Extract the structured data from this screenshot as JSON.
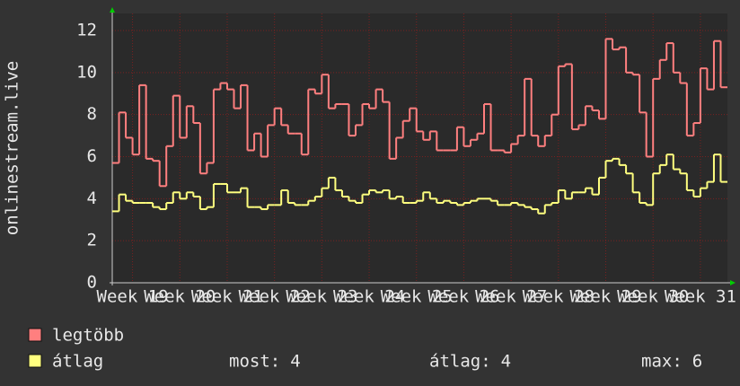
{
  "chart_data": {
    "type": "step-line",
    "y_label": "onlinestream.live",
    "x": [
      -3,
      -2,
      -1,
      0,
      1,
      2,
      3,
      4,
      5,
      6,
      7,
      8,
      9,
      10,
      11,
      12,
      13,
      14,
      15,
      16,
      17,
      18,
      19,
      20,
      21,
      22,
      23,
      24,
      25,
      26,
      27,
      28,
      29,
      30,
      31,
      32,
      33,
      34,
      35,
      36,
      37,
      38,
      39,
      40,
      41,
      42,
      43,
      44,
      45,
      46,
      47,
      48,
      49,
      50,
      51,
      52,
      53,
      54,
      55,
      56,
      57,
      58,
      59,
      60,
      61,
      62,
      63,
      64,
      65,
      66,
      67,
      68,
      69,
      70,
      71,
      72,
      73,
      74,
      75,
      76,
      77,
      78,
      79,
      80,
      81,
      82,
      83,
      84,
      85,
      86,
      87
    ],
    "series": [
      {
        "name": "legtöbb",
        "color": "#ff7f7f",
        "values": [
          5.7,
          8.1,
          6.9,
          6.1,
          9.4,
          5.9,
          5.8,
          4.6,
          6.5,
          8.9,
          6.9,
          8.4,
          7.6,
          5.2,
          5.7,
          9.2,
          9.5,
          9.2,
          8.3,
          9.4,
          6.3,
          7.1,
          6.0,
          7.5,
          8.3,
          7.5,
          7.1,
          7.1,
          6.1,
          9.2,
          9.0,
          9.9,
          8.3,
          8.5,
          8.5,
          7.0,
          7.5,
          8.5,
          8.3,
          9.2,
          8.6,
          5.9,
          6.9,
          7.7,
          8.3,
          7.2,
          6.8,
          7.2,
          6.3,
          6.3,
          6.3,
          7.4,
          6.5,
          6.8,
          7.1,
          8.5,
          6.3,
          6.3,
          6.2,
          6.6,
          7.0,
          9.7,
          7.0,
          6.5,
          7.0,
          8.0,
          10.3,
          10.4,
          7.3,
          7.5,
          8.4,
          8.2,
          7.8,
          11.6,
          11.1,
          11.2,
          10.0,
          9.9,
          8.1,
          6.0,
          9.7,
          10.6,
          11.4,
          10.0,
          9.5,
          7.0,
          7.6,
          10.2,
          9.2,
          11.5,
          9.3
        ]
      },
      {
        "name": "átlag",
        "color": "#ffff7f",
        "values": [
          3.4,
          4.2,
          3.9,
          3.8,
          3.8,
          3.8,
          3.6,
          3.5,
          3.8,
          4.3,
          4.0,
          4.3,
          4.1,
          3.5,
          3.6,
          4.7,
          4.7,
          4.3,
          4.3,
          4.5,
          3.6,
          3.6,
          3.5,
          3.7,
          3.7,
          4.4,
          3.8,
          3.7,
          3.7,
          3.9,
          4.1,
          4.5,
          5.0,
          4.4,
          4.1,
          3.9,
          3.8,
          4.2,
          4.4,
          4.3,
          4.4,
          4.0,
          4.1,
          3.8,
          3.8,
          3.9,
          4.3,
          4.0,
          3.8,
          3.9,
          3.8,
          3.7,
          3.8,
          3.9,
          4.0,
          4.0,
          3.9,
          3.7,
          3.7,
          3.8,
          3.7,
          3.6,
          3.5,
          3.3,
          3.7,
          3.8,
          4.4,
          4.0,
          4.3,
          4.3,
          4.5,
          4.2,
          5.0,
          5.8,
          5.9,
          5.6,
          5.2,
          4.3,
          3.8,
          3.7,
          5.2,
          5.6,
          6.1,
          5.4,
          5.2,
          4.4,
          4.1,
          4.5,
          4.8,
          6.1,
          4.8
        ]
      }
    ],
    "xlim": [
      -3,
      88
    ],
    "xticks": [
      {
        "value": 0,
        "label": "Week 19"
      },
      {
        "value": 7,
        "label": "Week 20"
      },
      {
        "value": 14,
        "label": "Week 21"
      },
      {
        "value": 21,
        "label": "Week 22"
      },
      {
        "value": 28,
        "label": "Week 23"
      },
      {
        "value": 35,
        "label": "Week 24"
      },
      {
        "value": 42,
        "label": "Week 25"
      },
      {
        "value": 49,
        "label": "Week 26"
      },
      {
        "value": 56,
        "label": "Week 27"
      },
      {
        "value": 63,
        "label": "Week 28"
      },
      {
        "value": 70,
        "label": "Week 29"
      },
      {
        "value": 77,
        "label": "Week 30"
      },
      {
        "value": 84,
        "label": "Week 31"
      }
    ],
    "ylim": [
      0,
      12
    ],
    "yticks": [
      0,
      2,
      4,
      6,
      8,
      10,
      12
    ],
    "grid": true,
    "stats": [
      {
        "label": "most:",
        "value": 4
      },
      {
        "label": "átlag:",
        "value": 4
      },
      {
        "label": "max:",
        "value": 6
      }
    ]
  }
}
